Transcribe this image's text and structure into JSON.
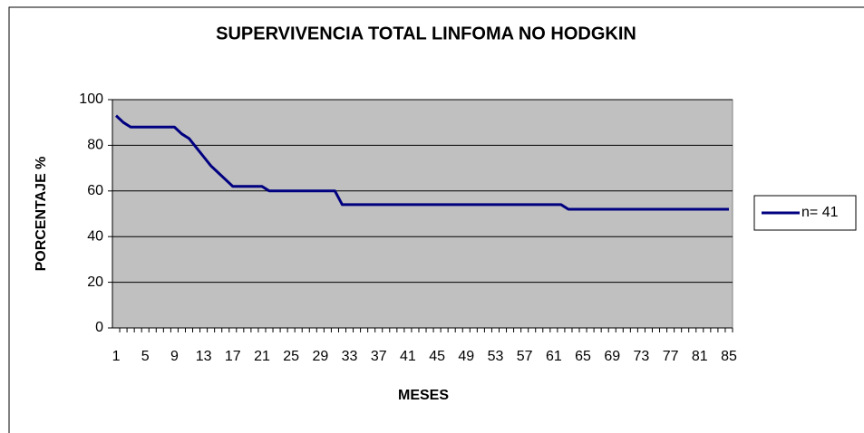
{
  "chart_data": {
    "type": "line",
    "title": "SUPERVIVENCIA TOTAL LINFOMA NO HODGKIN",
    "x_label": "MESES",
    "y_label": "PORCENTAJE %",
    "categories": [
      1,
      null,
      null,
      null,
      5,
      null,
      null,
      null,
      9,
      null,
      null,
      null,
      13,
      null,
      null,
      null,
      17,
      null,
      null,
      null,
      21,
      null,
      null,
      null,
      25,
      null,
      null,
      null,
      29,
      null,
      null,
      null,
      33,
      null,
      null,
      null,
      37,
      null,
      null,
      null,
      41,
      null,
      null,
      null,
      45,
      null,
      null,
      null,
      49,
      null,
      null,
      null,
      53,
      null,
      null,
      null,
      57,
      null,
      null,
      null,
      61,
      null,
      null,
      null,
      65,
      null,
      null,
      null,
      69,
      null,
      null,
      null,
      73,
      null,
      null,
      null,
      77,
      null,
      null,
      null,
      81,
      null,
      null,
      null,
      85
    ],
    "series": [
      {
        "name": "n= 41",
        "color": "#000080",
        "values": [
          93,
          90,
          88,
          88,
          88,
          88,
          88,
          88,
          88,
          85,
          83,
          79,
          75,
          71,
          68,
          65,
          62,
          62,
          62,
          62,
          62,
          60,
          60,
          60,
          60,
          60,
          60,
          60,
          60,
          60,
          60,
          54,
          54,
          54,
          54,
          54,
          54,
          54,
          54,
          54,
          54,
          54,
          54,
          54,
          54,
          54,
          54,
          54,
          54,
          54,
          54,
          54,
          54,
          54,
          54,
          54,
          54,
          54,
          54,
          54,
          54,
          54,
          52,
          52,
          52,
          52,
          52,
          52,
          52,
          52,
          52,
          52,
          52,
          52,
          52,
          52,
          52,
          52,
          52,
          52,
          52,
          52,
          52,
          52,
          52
        ]
      }
    ],
    "ylim": [
      0,
      100
    ],
    "yticks": [
      0,
      20,
      40,
      60,
      80,
      100
    ],
    "grid": true,
    "legend": "right"
  }
}
